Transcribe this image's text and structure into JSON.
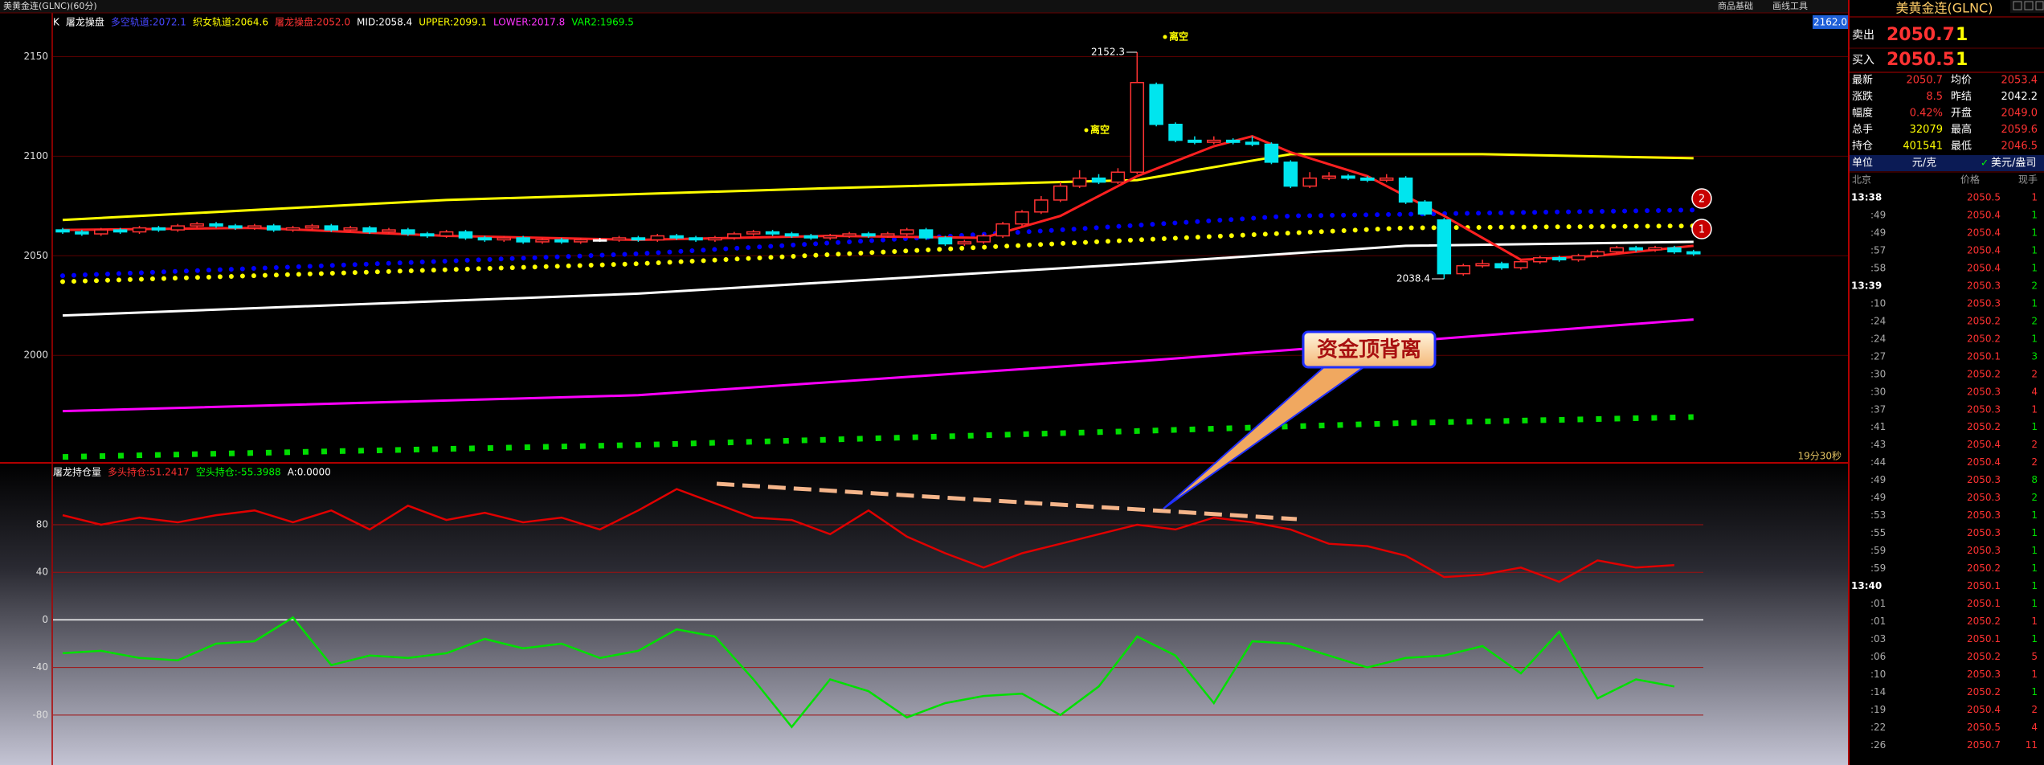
{
  "window": {
    "title": "美黄金连(GLNC)(60分)",
    "menu": [
      "商品基础",
      "画线工具"
    ]
  },
  "chart_data": [
    {
      "type": "candlestick",
      "period_label": "K",
      "title": "屠龙操盘",
      "legend": [
        {
          "text": "多空轨道:2072.1",
          "color": "#4646ff"
        },
        {
          "text": "织女轨道:2064.6",
          "color": "#ffff00"
        },
        {
          "text": "屠龙操盘:2052.0",
          "color": "#ff3333"
        },
        {
          "text": "MID:2058.4",
          "color": "#ffffff"
        },
        {
          "text": "UPPER:2099.1",
          "color": "#ffff00"
        },
        {
          "text": "LOWER:2017.8",
          "color": "#ff33ff"
        },
        {
          "text": "VAR2:1969.5",
          "color": "#00ff00"
        }
      ],
      "ylim": [
        1946,
        2172
      ],
      "yticks": [
        2000,
        2050,
        2100,
        2150
      ],
      "open": [
        2063,
        2062,
        2061,
        2063,
        2062,
        2064,
        2063,
        2065,
        2066,
        2065,
        2064,
        2065,
        2063,
        2064,
        2065,
        2063,
        2064,
        2062,
        2063,
        2061,
        2060,
        2062,
        2059,
        2058,
        2059,
        2057,
        2058,
        2057,
        2058,
        2058,
        2059,
        2058,
        2060,
        2059,
        2058,
        2059,
        2061,
        2062,
        2061,
        2060,
        2059,
        2060,
        2061,
        2060,
        2061,
        2063,
        2059,
        2056,
        2057,
        2060,
        2066,
        2072,
        2078,
        2085,
        2089,
        2087,
        2092,
        2136,
        2116,
        2108,
        2107,
        2108,
        2107,
        2106,
        2097,
        2085,
        2089,
        2090,
        2089,
        2088,
        2089,
        2077,
        2068,
        2041,
        2045,
        2046,
        2044,
        2047,
        2049,
        2048,
        2050,
        2052,
        2054,
        2053,
        2054,
        2052
      ],
      "high": [
        2064,
        2063,
        2064,
        2064,
        2065,
        2065,
        2066,
        2067,
        2067,
        2066,
        2066,
        2066,
        2065,
        2066,
        2066,
        2065,
        2065,
        2064,
        2064,
        2062,
        2063,
        2063,
        2060,
        2060,
        2060,
        2059,
        2059,
        2059,
        2059,
        2060,
        2060,
        2061,
        2061,
        2060,
        2060,
        2062,
        2063,
        2063,
        2062,
        2061,
        2061,
        2062,
        2062,
        2062,
        2064,
        2064,
        2060,
        2058,
        2061,
        2067,
        2073,
        2080,
        2087,
        2093,
        2091,
        2094,
        2152.3,
        2137,
        2117,
        2110,
        2110,
        2109,
        2110,
        2107,
        2098,
        2092,
        2092,
        2091,
        2090,
        2091,
        2090,
        2078,
        2069,
        2046,
        2048,
        2047,
        2048,
        2050,
        2050,
        2051,
        2053,
        2055,
        2055,
        2055,
        2055,
        2053
      ],
      "low": [
        2061,
        2060,
        2060,
        2061,
        2061,
        2062,
        2062,
        2064,
        2064,
        2063,
        2063,
        2062,
        2062,
        2063,
        2062,
        2062,
        2061,
        2061,
        2060,
        2059,
        2059,
        2058,
        2057,
        2057,
        2056,
        2056,
        2056,
        2056,
        2057,
        2057,
        2057,
        2057,
        2058,
        2057,
        2057,
        2058,
        2060,
        2060,
        2059,
        2058,
        2058,
        2059,
        2059,
        2059,
        2060,
        2058,
        2055,
        2055,
        2056,
        2059,
        2065,
        2071,
        2077,
        2084,
        2086,
        2086,
        2091,
        2115,
        2107,
        2106,
        2106,
        2106,
        2105,
        2096,
        2084,
        2084,
        2088,
        2088,
        2087,
        2087,
        2076,
        2070,
        2038.4,
        2040,
        2044,
        2043,
        2043,
        2046,
        2047,
        2047,
        2049,
        2051,
        2052,
        2052,
        2051,
        2050
      ],
      "close": [
        2062,
        2061,
        2063,
        2062,
        2064,
        2063,
        2065,
        2066,
        2065,
        2064,
        2065,
        2063,
        2064,
        2065,
        2063,
        2064,
        2062,
        2063,
        2061,
        2060,
        2062,
        2059,
        2058,
        2059,
        2057,
        2058,
        2057,
        2058,
        2058,
        2059,
        2058,
        2060,
        2059,
        2058,
        2059,
        2061,
        2062,
        2061,
        2060,
        2059,
        2060,
        2061,
        2060,
        2061,
        2063,
        2059,
        2056,
        2057,
        2060,
        2066,
        2072,
        2078,
        2085,
        2089,
        2087,
        2092,
        2137,
        2116,
        2108,
        2107,
        2108,
        2107,
        2106,
        2097,
        2085,
        2089,
        2090,
        2089,
        2088,
        2089,
        2077,
        2071,
        2041,
        2045,
        2046,
        2044,
        2047,
        2049,
        2048,
        2050,
        2052,
        2054,
        2053,
        2054,
        2052,
        2051
      ],
      "up_color": "#ff3232",
      "down_color": "#00e5ee",
      "series": [
        {
          "color": "#ffff00",
          "style": "solid",
          "x": [
            0,
            20,
            40,
            56,
            64,
            74,
            85
          ],
          "values": [
            2068,
            2078,
            2084,
            2088,
            2101,
            2101,
            2099
          ]
        },
        {
          "color": "#ffffff",
          "style": "solid",
          "x": [
            0,
            30,
            56,
            70,
            85
          ],
          "values": [
            2020,
            2031,
            2046,
            2055,
            2057
          ]
        },
        {
          "color": "#ff00ff",
          "style": "solid",
          "x": [
            0,
            30,
            56,
            70,
            85
          ],
          "values": [
            1972,
            1980,
            1997,
            2007,
            2018
          ]
        },
        {
          "color": "#0000ff",
          "style": "dotted",
          "x": [
            0,
            30,
            52,
            64,
            85
          ],
          "values": [
            2040,
            2051,
            2063,
            2070,
            2073
          ]
        },
        {
          "color": "#ffff00",
          "style": "dotted",
          "x": [
            0,
            30,
            56,
            70,
            85
          ],
          "values": [
            2037,
            2046,
            2058,
            2064,
            2065
          ]
        },
        {
          "color": "#00dd00",
          "style": "squares",
          "x": [
            0,
            30,
            56,
            70,
            85
          ],
          "values": [
            1949,
            1955,
            1962,
            1966,
            1969
          ]
        },
        {
          "color": "#ff2020",
          "style": "solid",
          "x": [
            0,
            10,
            20,
            30,
            40,
            48,
            52,
            56,
            60,
            62,
            64,
            68,
            72,
            76,
            80,
            85
          ],
          "values": [
            2063,
            2064,
            2060,
            2058,
            2060,
            2059,
            2070,
            2090,
            2105,
            2110,
            2102,
            2090,
            2070,
            2048,
            2050,
            2055
          ]
        }
      ],
      "annotations": {
        "signals": [
          "离空",
          "离空"
        ],
        "markers": [
          "2",
          "1"
        ],
        "countdown": "19分30秒",
        "cursor_price": "2162.0",
        "callout": "资金顶背离"
      }
    },
    {
      "type": "line",
      "title": "屠龙持仓量",
      "legend": [
        {
          "text": "多头持仓:51.2417",
          "color": "#ff3030"
        },
        {
          "text": "空头持仓:-55.3988",
          "color": "#00ff00"
        },
        {
          "text": "A:0.0000",
          "color": "#ffffff"
        }
      ],
      "ylim": [
        -122,
        132
      ],
      "yticks": [
        -80,
        -40,
        0,
        40,
        80
      ],
      "x": [
        0,
        2,
        4,
        6,
        8,
        10,
        12,
        14,
        16,
        18,
        20,
        22,
        24,
        26,
        28,
        30,
        32,
        34,
        36,
        38,
        40,
        42,
        44,
        46,
        48,
        50,
        52,
        54,
        56,
        58,
        60,
        62,
        64,
        66,
        68,
        70,
        72,
        74,
        76,
        78,
        80,
        82,
        84
      ],
      "series": [
        {
          "color": "#e00000",
          "values": [
            88,
            80,
            86,
            82,
            88,
            92,
            82,
            92,
            76,
            96,
            84,
            90,
            82,
            86,
            76,
            92,
            110,
            98,
            86,
            84,
            72,
            92,
            70,
            56,
            44,
            56,
            64,
            72,
            80,
            76,
            86,
            82,
            76,
            64,
            62,
            54,
            36,
            38,
            44,
            32,
            50,
            44,
            46
          ]
        },
        {
          "color": "#00e000",
          "values": [
            -28,
            -26,
            -32,
            -34,
            -20,
            -18,
            2,
            -38,
            -30,
            -32,
            -28,
            -16,
            -24,
            -20,
            -32,
            -26,
            -8,
            -14,
            -50,
            -90,
            -50,
            -60,
            -82,
            -70,
            -64,
            -62,
            -80,
            -56,
            -14,
            -30,
            -70,
            -18,
            -20,
            -30,
            -40,
            -32,
            -30,
            -22,
            -45,
            -10,
            -66,
            -50,
            -56
          ]
        }
      ]
    }
  ],
  "quote": {
    "symbol": "美黄金连(GLNC)",
    "ask": [
      "卖出",
      "2050.7",
      "1"
    ],
    "bid": [
      "买入",
      "2050.5",
      "1"
    ],
    "rows": [
      [
        "最新",
        "2050.7",
        "均价",
        "2053.4"
      ],
      [
        "涨跌",
        "8.5",
        "昨结",
        "2042.2"
      ],
      [
        "幅度",
        "0.42%",
        "开盘",
        "2049.0"
      ],
      [
        "总手",
        "32079",
        "最高",
        "2059.6"
      ],
      [
        "持仓",
        "401541",
        "最低",
        "2046.5"
      ]
    ],
    "unit": [
      "单位",
      "元/克",
      "美元/盎司"
    ]
  },
  "trades": {
    "headers": [
      "北京",
      "价格",
      "现手"
    ],
    "rows": [
      [
        "13:38",
        "2050.5",
        "1"
      ],
      [
        ":49",
        "2050.4",
        "1"
      ],
      [
        ":49",
        "2050.4",
        "1"
      ],
      [
        ":57",
        "2050.4",
        "1"
      ],
      [
        ":58",
        "2050.4",
        "1"
      ],
      [
        "13:39",
        "2050.3",
        "2"
      ],
      [
        ":10",
        "2050.3",
        "1"
      ],
      [
        ":24",
        "2050.2",
        "2"
      ],
      [
        ":24",
        "2050.2",
        "1"
      ],
      [
        ":27",
        "2050.1",
        "3"
      ],
      [
        ":30",
        "2050.2",
        "2"
      ],
      [
        ":30",
        "2050.3",
        "4"
      ],
      [
        ":37",
        "2050.3",
        "1"
      ],
      [
        ":41",
        "2050.2",
        "1"
      ],
      [
        ":43",
        "2050.4",
        "2"
      ],
      [
        ":44",
        "2050.4",
        "2"
      ],
      [
        ":49",
        "2050.3",
        "8"
      ],
      [
        ":49",
        "2050.3",
        "2"
      ],
      [
        ":53",
        "2050.3",
        "1"
      ],
      [
        ":55",
        "2050.3",
        "1"
      ],
      [
        ":59",
        "2050.3",
        "1"
      ],
      [
        ":59",
        "2050.2",
        "1"
      ],
      [
        "13:40",
        "2050.1",
        "1"
      ],
      [
        ":01",
        "2050.1",
        "1"
      ],
      [
        ":01",
        "2050.2",
        "1"
      ],
      [
        ":03",
        "2050.1",
        "1"
      ],
      [
        ":06",
        "2050.2",
        "5"
      ],
      [
        ":10",
        "2050.3",
        "1"
      ],
      [
        ":14",
        "2050.2",
        "1"
      ],
      [
        ":19",
        "2050.4",
        "2"
      ],
      [
        ":22",
        "2050.5",
        "4"
      ],
      [
        ":26",
        "2050.7",
        "11"
      ]
    ]
  }
}
